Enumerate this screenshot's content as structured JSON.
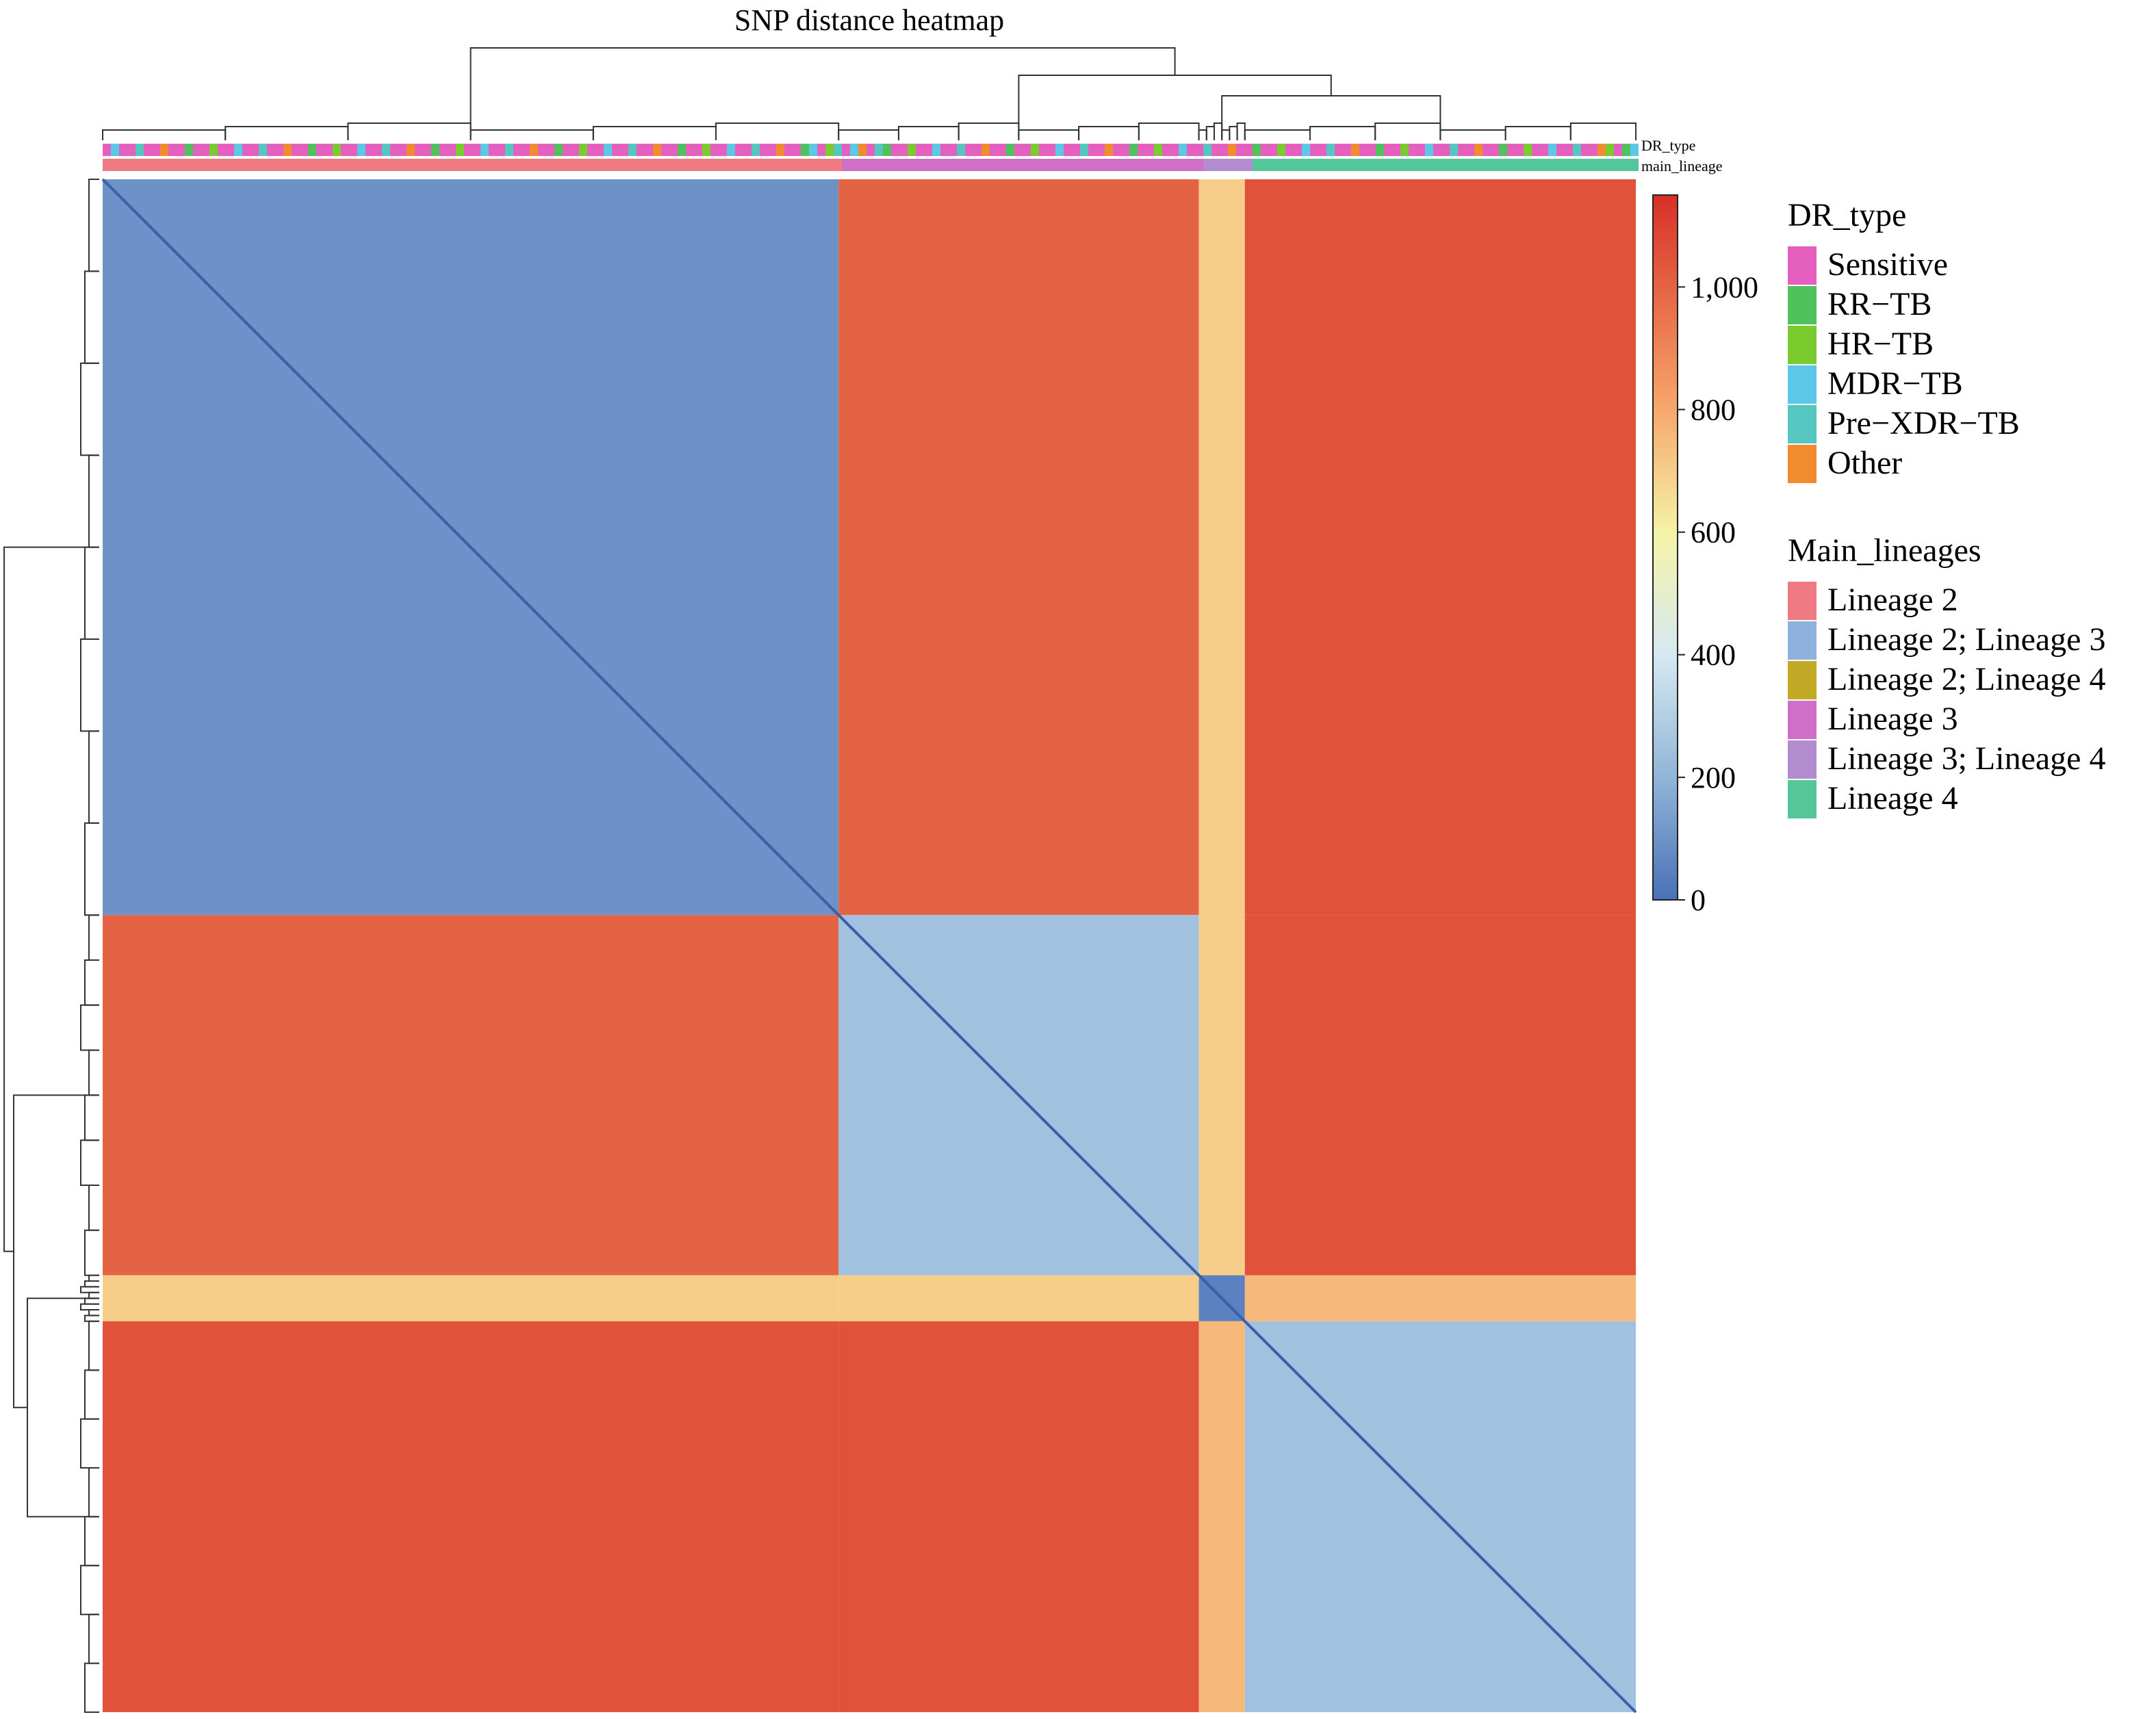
{
  "chart_data": {
    "type": "heatmap",
    "title": "SNP distance heatmap",
    "annotation_tracks": [
      "DR_type",
      "main_lineage"
    ],
    "colorbar": {
      "ticks": [
        0,
        200,
        400,
        600,
        800,
        1000
      ],
      "tick_labels": [
        "0",
        "200",
        "400",
        "600",
        "800",
        "1,000"
      ],
      "range": [
        0,
        1150
      ],
      "colors": [
        "#4a70b8",
        "#8fb4d8",
        "#d6e9f0",
        "#f5f3a8",
        "#f6a66a",
        "#d73027"
      ]
    },
    "clusters": [
      {
        "id": "A",
        "lineage": "Lineage 2",
        "fraction": 0.48
      },
      {
        "id": "B",
        "lineage": "Lineage 3",
        "fraction": 0.235
      },
      {
        "id": "C",
        "lineage": "Lineage 3; Lineage 4",
        "fraction": 0.03
      },
      {
        "id": "D",
        "lineage": "Lineage 4",
        "fraction": 0.255
      }
    ],
    "between_cluster_distance": [
      [
        100,
        1000,
        700,
        1050
      ],
      [
        1000,
        250,
        700,
        1050
      ],
      [
        700,
        700,
        50,
        750
      ],
      [
        1050,
        1050,
        750,
        250
      ]
    ],
    "legends": [
      {
        "title": "DR_type",
        "entries": [
          {
            "label": "Sensitive",
            "color": "#e55fbf"
          },
          {
            "label": "RR−TB",
            "color": "#4fc25b"
          },
          {
            "label": "HR−TB",
            "color": "#7acb2e"
          },
          {
            "label": "MDR−TB",
            "color": "#5bc8e8"
          },
          {
            "label": "Pre−XDR−TB",
            "color": "#56c6c0"
          },
          {
            "label": "Other",
            "color": "#f28a2f"
          }
        ]
      },
      {
        "title": "Main_lineages",
        "entries": [
          {
            "label": "Lineage 2",
            "color": "#f07a84"
          },
          {
            "label": "Lineage 2; Lineage 3",
            "color": "#8fb1de"
          },
          {
            "label": "Lineage 2; Lineage 4",
            "color": "#c2a926"
          },
          {
            "label": "Lineage 3",
            "color": "#cf6fc8"
          },
          {
            "label": "Lineage 3; Lineage 4",
            "color": "#b38bcf"
          },
          {
            "label": "Lineage 4",
            "color": "#55c59a"
          }
        ]
      }
    ]
  }
}
